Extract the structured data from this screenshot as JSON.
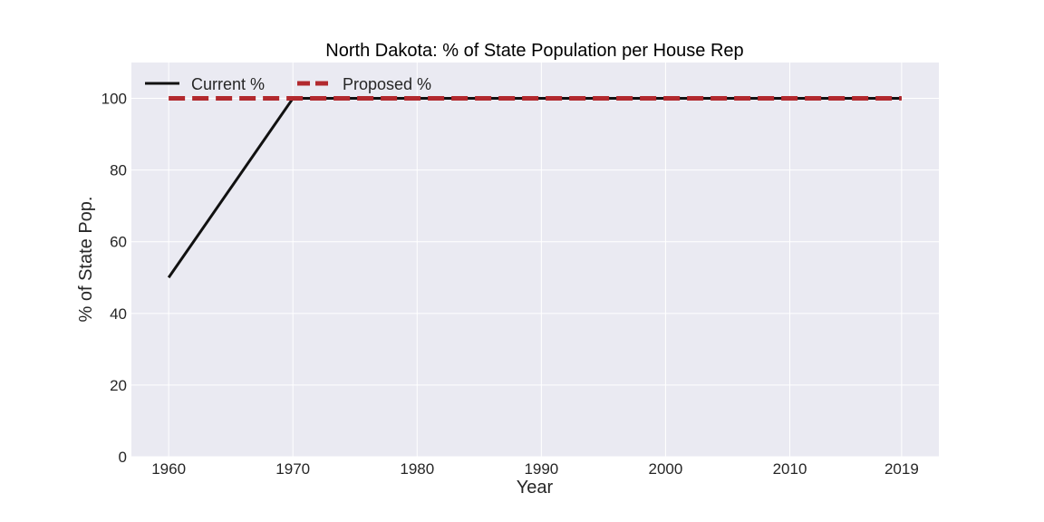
{
  "chart_data": {
    "type": "line",
    "title": "North Dakota: % of State Population per House Rep",
    "xlabel": "Year",
    "ylabel": "% of State Pop.",
    "xlim": [
      1957,
      2022
    ],
    "ylim": [
      0,
      110
    ],
    "x_ticks": [
      1960,
      1970,
      1980,
      1990,
      2000,
      2010,
      2019
    ],
    "y_ticks": [
      0,
      20,
      40,
      60,
      80,
      100
    ],
    "grid": true,
    "legend": {
      "location": "top-left",
      "columns": 2
    },
    "colors": {
      "background": "#eaeaf2",
      "grid": "#ffffff",
      "current": "#111111",
      "proposed": "#b2292e"
    },
    "series": [
      {
        "name": "Current %",
        "style": "solid",
        "x": [
          1960,
          1970,
          1980,
          1990,
          2000,
          2010,
          2019
        ],
        "values": [
          50,
          100,
          100,
          100,
          100,
          100,
          100
        ]
      },
      {
        "name": "Proposed %",
        "style": "dashed",
        "x": [
          1960,
          1970,
          1980,
          1990,
          2000,
          2010,
          2019
        ],
        "values": [
          100,
          100,
          100,
          100,
          100,
          100,
          100
        ]
      }
    ]
  }
}
